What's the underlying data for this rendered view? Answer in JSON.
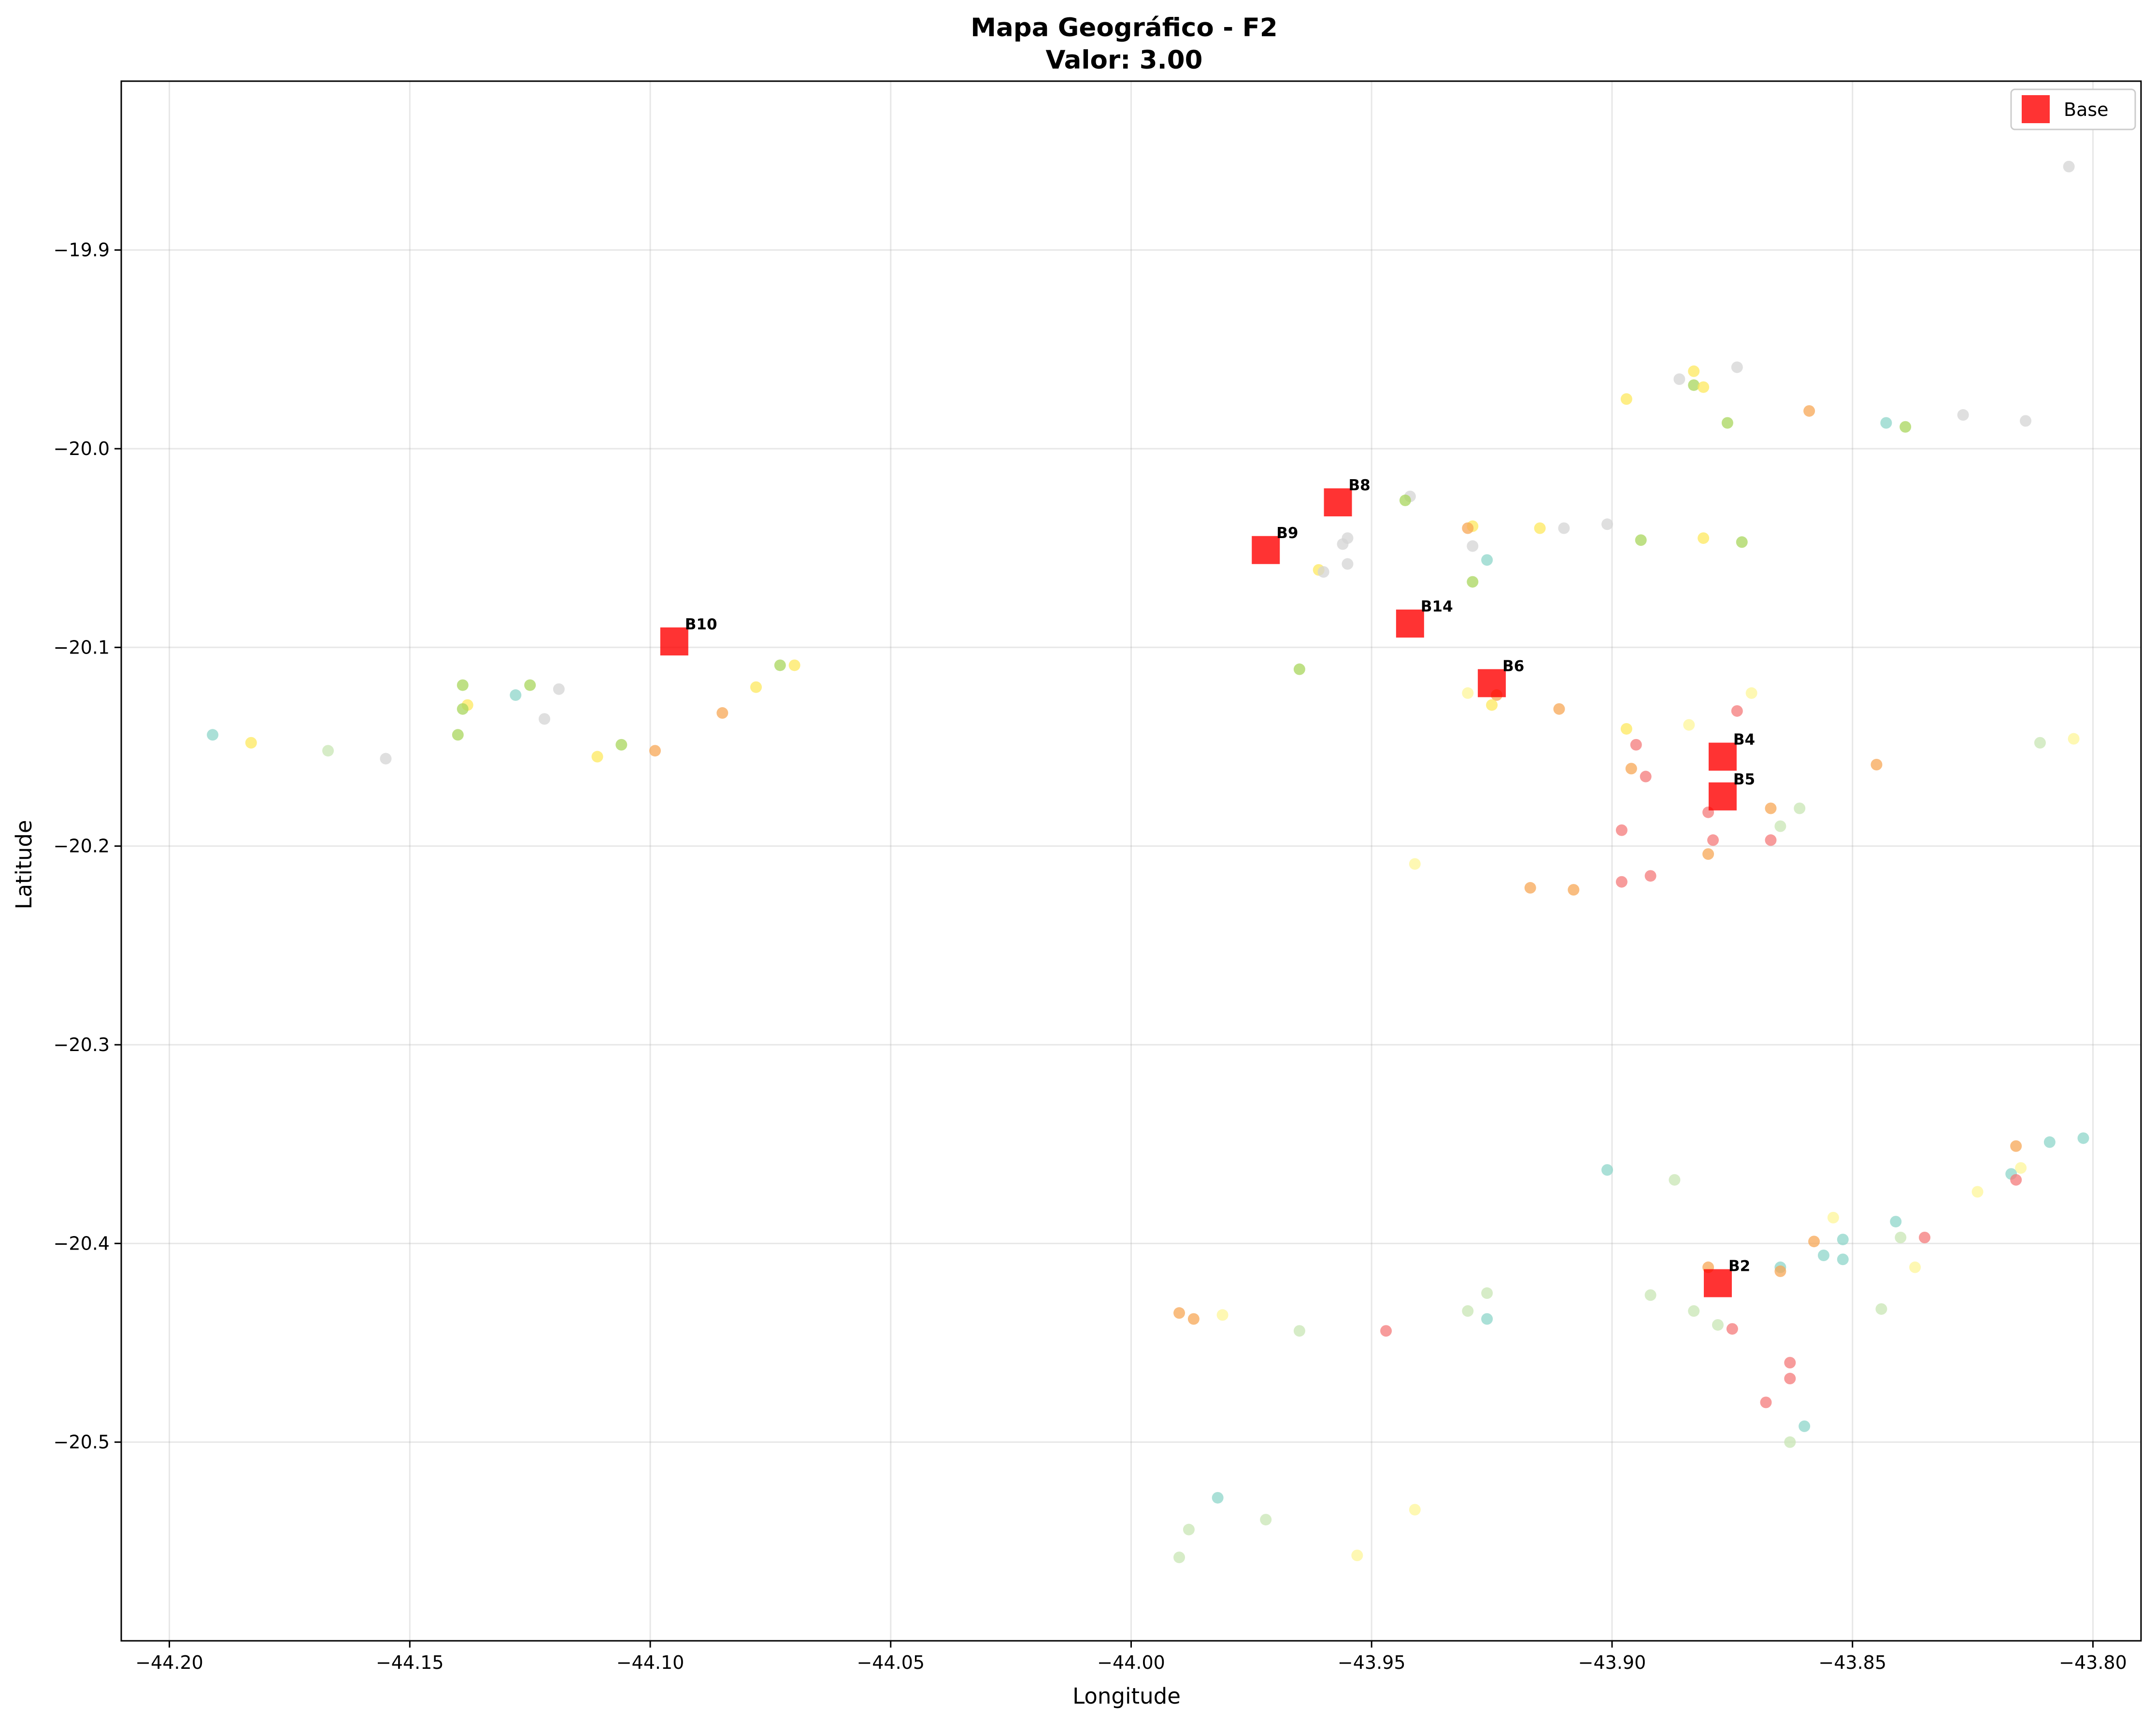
{
  "chart_data": {
    "type": "scatter",
    "title": "Mapa Geográfico - F2",
    "subtitle": "Valor: 3.00",
    "xlabel": "Longitude",
    "ylabel": "Latitude",
    "xlim": [
      -44.21,
      -43.79
    ],
    "ylim": [
      -20.6,
      -19.815
    ],
    "xticks": [
      -44.2,
      -44.15,
      -44.1,
      -44.05,
      -44.0,
      -43.95,
      -43.9,
      -43.85,
      -43.8
    ],
    "xtick_labels": [
      "−44.20",
      "−44.15",
      "−44.10",
      "−44.05",
      "−44.00",
      "−43.95",
      "−43.90",
      "−43.85",
      "−43.80"
    ],
    "yticks": [
      -19.9,
      -20.0,
      -20.1,
      -20.2,
      -20.3,
      -20.4,
      -20.5
    ],
    "ytick_labels": [
      "−19.9",
      "−20.0",
      "−20.1",
      "−20.2",
      "−20.3",
      "−20.4",
      "−20.5"
    ],
    "grid": true,
    "legend": {
      "position": "top-right",
      "entries": [
        {
          "label": "Base",
          "color": "#ff0000"
        }
      ]
    },
    "colors": {
      "red": "#f47a7a",
      "orange": "#f7a756",
      "yellow": "#fde85e",
      "lightyellow": "#fdf59a",
      "lightgreen": "#c8e6b4",
      "green": "#a8d55c",
      "teal": "#8ed6c9",
      "gray": "#d4d4d4",
      "base": "#ff0000"
    },
    "bases": [
      {
        "label": "B8",
        "lon": -43.957,
        "lat": -20.027
      },
      {
        "label": "B9",
        "lon": -43.972,
        "lat": -20.051
      },
      {
        "label": "B10",
        "lon": -44.095,
        "lat": -20.097
      },
      {
        "label": "B14",
        "lon": -43.942,
        "lat": -20.088
      },
      {
        "label": "B6",
        "lon": -43.925,
        "lat": -20.118
      },
      {
        "label": "B4",
        "lon": -43.877,
        "lat": -20.155
      },
      {
        "label": "B5",
        "lon": -43.877,
        "lat": -20.175
      },
      {
        "label": "B2",
        "lon": -43.878,
        "lat": -20.42
      }
    ],
    "points": [
      {
        "lon": -43.805,
        "lat": -19.858,
        "c": "gray"
      },
      {
        "lon": -43.874,
        "lat": -19.959,
        "c": "gray"
      },
      {
        "lon": -43.883,
        "lat": -19.961,
        "c": "yellow"
      },
      {
        "lon": -43.886,
        "lat": -19.965,
        "c": "gray"
      },
      {
        "lon": -43.883,
        "lat": -19.968,
        "c": "green"
      },
      {
        "lon": -43.881,
        "lat": -19.969,
        "c": "yellow"
      },
      {
        "lon": -43.897,
        "lat": -19.975,
        "c": "yellow"
      },
      {
        "lon": -43.859,
        "lat": -19.981,
        "c": "orange"
      },
      {
        "lon": -43.827,
        "lat": -19.983,
        "c": "gray"
      },
      {
        "lon": -43.876,
        "lat": -19.987,
        "c": "green"
      },
      {
        "lon": -43.843,
        "lat": -19.987,
        "c": "teal"
      },
      {
        "lon": -43.814,
        "lat": -19.986,
        "c": "gray"
      },
      {
        "lon": -43.839,
        "lat": -19.989,
        "c": "green"
      },
      {
        "lon": -43.942,
        "lat": -20.024,
        "c": "gray"
      },
      {
        "lon": -43.943,
        "lat": -20.026,
        "c": "green"
      },
      {
        "lon": -43.929,
        "lat": -20.039,
        "c": "yellow"
      },
      {
        "lon": -43.93,
        "lat": -20.04,
        "c": "orange"
      },
      {
        "lon": -43.915,
        "lat": -20.04,
        "c": "yellow"
      },
      {
        "lon": -43.91,
        "lat": -20.04,
        "c": "gray"
      },
      {
        "lon": -43.901,
        "lat": -20.038,
        "c": "gray"
      },
      {
        "lon": -43.881,
        "lat": -20.045,
        "c": "yellow"
      },
      {
        "lon": -43.894,
        "lat": -20.046,
        "c": "green"
      },
      {
        "lon": -43.873,
        "lat": -20.047,
        "c": "green"
      },
      {
        "lon": -43.955,
        "lat": -20.045,
        "c": "gray"
      },
      {
        "lon": -43.956,
        "lat": -20.048,
        "c": "gray"
      },
      {
        "lon": -43.929,
        "lat": -20.049,
        "c": "gray"
      },
      {
        "lon": -43.926,
        "lat": -20.056,
        "c": "teal"
      },
      {
        "lon": -43.955,
        "lat": -20.058,
        "c": "gray"
      },
      {
        "lon": -43.961,
        "lat": -20.061,
        "c": "yellow"
      },
      {
        "lon": -43.96,
        "lat": -20.062,
        "c": "gray"
      },
      {
        "lon": -43.929,
        "lat": -20.067,
        "c": "green"
      },
      {
        "lon": -43.965,
        "lat": -20.111,
        "c": "green"
      },
      {
        "lon": -44.073,
        "lat": -20.109,
        "c": "green"
      },
      {
        "lon": -44.07,
        "lat": -20.109,
        "c": "yellow"
      },
      {
        "lon": -44.078,
        "lat": -20.12,
        "c": "yellow"
      },
      {
        "lon": -44.139,
        "lat": -20.119,
        "c": "green"
      },
      {
        "lon": -44.125,
        "lat": -20.119,
        "c": "green"
      },
      {
        "lon": -44.119,
        "lat": -20.121,
        "c": "gray"
      },
      {
        "lon": -44.128,
        "lat": -20.124,
        "c": "teal"
      },
      {
        "lon": -44.138,
        "lat": -20.129,
        "c": "yellow"
      },
      {
        "lon": -44.139,
        "lat": -20.131,
        "c": "green"
      },
      {
        "lon": -44.085,
        "lat": -20.133,
        "c": "orange"
      },
      {
        "lon": -44.122,
        "lat": -20.136,
        "c": "gray"
      },
      {
        "lon": -44.14,
        "lat": -20.144,
        "c": "green"
      },
      {
        "lon": -44.191,
        "lat": -20.144,
        "c": "teal"
      },
      {
        "lon": -44.183,
        "lat": -20.148,
        "c": "yellow"
      },
      {
        "lon": -44.106,
        "lat": -20.149,
        "c": "green"
      },
      {
        "lon": -44.167,
        "lat": -20.152,
        "c": "lightgreen"
      },
      {
        "lon": -44.099,
        "lat": -20.152,
        "c": "orange"
      },
      {
        "lon": -44.111,
        "lat": -20.155,
        "c": "yellow"
      },
      {
        "lon": -44.155,
        "lat": -20.156,
        "c": "gray"
      },
      {
        "lon": -43.93,
        "lat": -20.123,
        "c": "lightyellow"
      },
      {
        "lon": -43.924,
        "lat": -20.124,
        "c": "orange"
      },
      {
        "lon": -43.925,
        "lat": -20.129,
        "c": "yellow"
      },
      {
        "lon": -43.871,
        "lat": -20.123,
        "c": "lightyellow"
      },
      {
        "lon": -43.874,
        "lat": -20.132,
        "c": "red"
      },
      {
        "lon": -43.911,
        "lat": -20.131,
        "c": "orange"
      },
      {
        "lon": -43.884,
        "lat": -20.139,
        "c": "lightyellow"
      },
      {
        "lon": -43.897,
        "lat": -20.141,
        "c": "yellow"
      },
      {
        "lon": -43.895,
        "lat": -20.149,
        "c": "red"
      },
      {
        "lon": -43.811,
        "lat": -20.148,
        "c": "lightgreen"
      },
      {
        "lon": -43.804,
        "lat": -20.146,
        "c": "lightyellow"
      },
      {
        "lon": -43.845,
        "lat": -20.159,
        "c": "orange"
      },
      {
        "lon": -43.896,
        "lat": -20.161,
        "c": "orange"
      },
      {
        "lon": -43.893,
        "lat": -20.165,
        "c": "red"
      },
      {
        "lon": -43.867,
        "lat": -20.181,
        "c": "orange"
      },
      {
        "lon": -43.861,
        "lat": -20.181,
        "c": "lightgreen"
      },
      {
        "lon": -43.88,
        "lat": -20.183,
        "c": "red"
      },
      {
        "lon": -43.865,
        "lat": -20.19,
        "c": "lightgreen"
      },
      {
        "lon": -43.898,
        "lat": -20.192,
        "c": "red"
      },
      {
        "lon": -43.879,
        "lat": -20.197,
        "c": "red"
      },
      {
        "lon": -43.867,
        "lat": -20.197,
        "c": "red"
      },
      {
        "lon": -43.88,
        "lat": -20.204,
        "c": "orange"
      },
      {
        "lon": -43.941,
        "lat": -20.209,
        "c": "lightyellow"
      },
      {
        "lon": -43.892,
        "lat": -20.215,
        "c": "red"
      },
      {
        "lon": -43.898,
        "lat": -20.218,
        "c": "red"
      },
      {
        "lon": -43.917,
        "lat": -20.221,
        "c": "orange"
      },
      {
        "lon": -43.908,
        "lat": -20.222,
        "c": "orange"
      },
      {
        "lon": -43.802,
        "lat": -20.347,
        "c": "teal"
      },
      {
        "lon": -43.809,
        "lat": -20.349,
        "c": "teal"
      },
      {
        "lon": -43.816,
        "lat": -20.351,
        "c": "orange"
      },
      {
        "lon": -43.815,
        "lat": -20.362,
        "c": "lightyellow"
      },
      {
        "lon": -43.901,
        "lat": -20.363,
        "c": "teal"
      },
      {
        "lon": -43.817,
        "lat": -20.365,
        "c": "teal"
      },
      {
        "lon": -43.816,
        "lat": -20.368,
        "c": "red"
      },
      {
        "lon": -43.887,
        "lat": -20.368,
        "c": "lightgreen"
      },
      {
        "lon": -43.824,
        "lat": -20.374,
        "c": "lightyellow"
      },
      {
        "lon": -43.854,
        "lat": -20.387,
        "c": "lightyellow"
      },
      {
        "lon": -43.841,
        "lat": -20.389,
        "c": "teal"
      },
      {
        "lon": -43.84,
        "lat": -20.397,
        "c": "lightgreen"
      },
      {
        "lon": -43.835,
        "lat": -20.397,
        "c": "red"
      },
      {
        "lon": -43.852,
        "lat": -20.398,
        "c": "teal"
      },
      {
        "lon": -43.858,
        "lat": -20.399,
        "c": "orange"
      },
      {
        "lon": -43.856,
        "lat": -20.406,
        "c": "teal"
      },
      {
        "lon": -43.852,
        "lat": -20.408,
        "c": "teal"
      },
      {
        "lon": -43.837,
        "lat": -20.412,
        "c": "lightyellow"
      },
      {
        "lon": -43.88,
        "lat": -20.412,
        "c": "orange"
      },
      {
        "lon": -43.865,
        "lat": -20.412,
        "c": "teal"
      },
      {
        "lon": -43.865,
        "lat": -20.414,
        "c": "orange"
      },
      {
        "lon": -43.926,
        "lat": -20.425,
        "c": "lightgreen"
      },
      {
        "lon": -43.892,
        "lat": -20.426,
        "c": "lightgreen"
      },
      {
        "lon": -43.844,
        "lat": -20.433,
        "c": "lightgreen"
      },
      {
        "lon": -43.93,
        "lat": -20.434,
        "c": "lightgreen"
      },
      {
        "lon": -43.883,
        "lat": -20.434,
        "c": "lightgreen"
      },
      {
        "lon": -43.99,
        "lat": -20.435,
        "c": "orange"
      },
      {
        "lon": -43.981,
        "lat": -20.436,
        "c": "lightyellow"
      },
      {
        "lon": -43.987,
        "lat": -20.438,
        "c": "orange"
      },
      {
        "lon": -43.926,
        "lat": -20.438,
        "c": "teal"
      },
      {
        "lon": -43.878,
        "lat": -20.441,
        "c": "lightgreen"
      },
      {
        "lon": -43.965,
        "lat": -20.444,
        "c": "lightgreen"
      },
      {
        "lon": -43.947,
        "lat": -20.444,
        "c": "red"
      },
      {
        "lon": -43.875,
        "lat": -20.443,
        "c": "red"
      },
      {
        "lon": -43.863,
        "lat": -20.46,
        "c": "red"
      },
      {
        "lon": -43.863,
        "lat": -20.468,
        "c": "red"
      },
      {
        "lon": -43.868,
        "lat": -20.48,
        "c": "red"
      },
      {
        "lon": -43.86,
        "lat": -20.492,
        "c": "teal"
      },
      {
        "lon": -43.863,
        "lat": -20.5,
        "c": "lightgreen"
      },
      {
        "lon": -43.982,
        "lat": -20.528,
        "c": "teal"
      },
      {
        "lon": -43.941,
        "lat": -20.534,
        "c": "lightyellow"
      },
      {
        "lon": -43.972,
        "lat": -20.539,
        "c": "lightgreen"
      },
      {
        "lon": -43.988,
        "lat": -20.544,
        "c": "lightgreen"
      },
      {
        "lon": -43.99,
        "lat": -20.558,
        "c": "lightgreen"
      },
      {
        "lon": -43.953,
        "lat": -20.557,
        "c": "lightyellow"
      }
    ]
  }
}
